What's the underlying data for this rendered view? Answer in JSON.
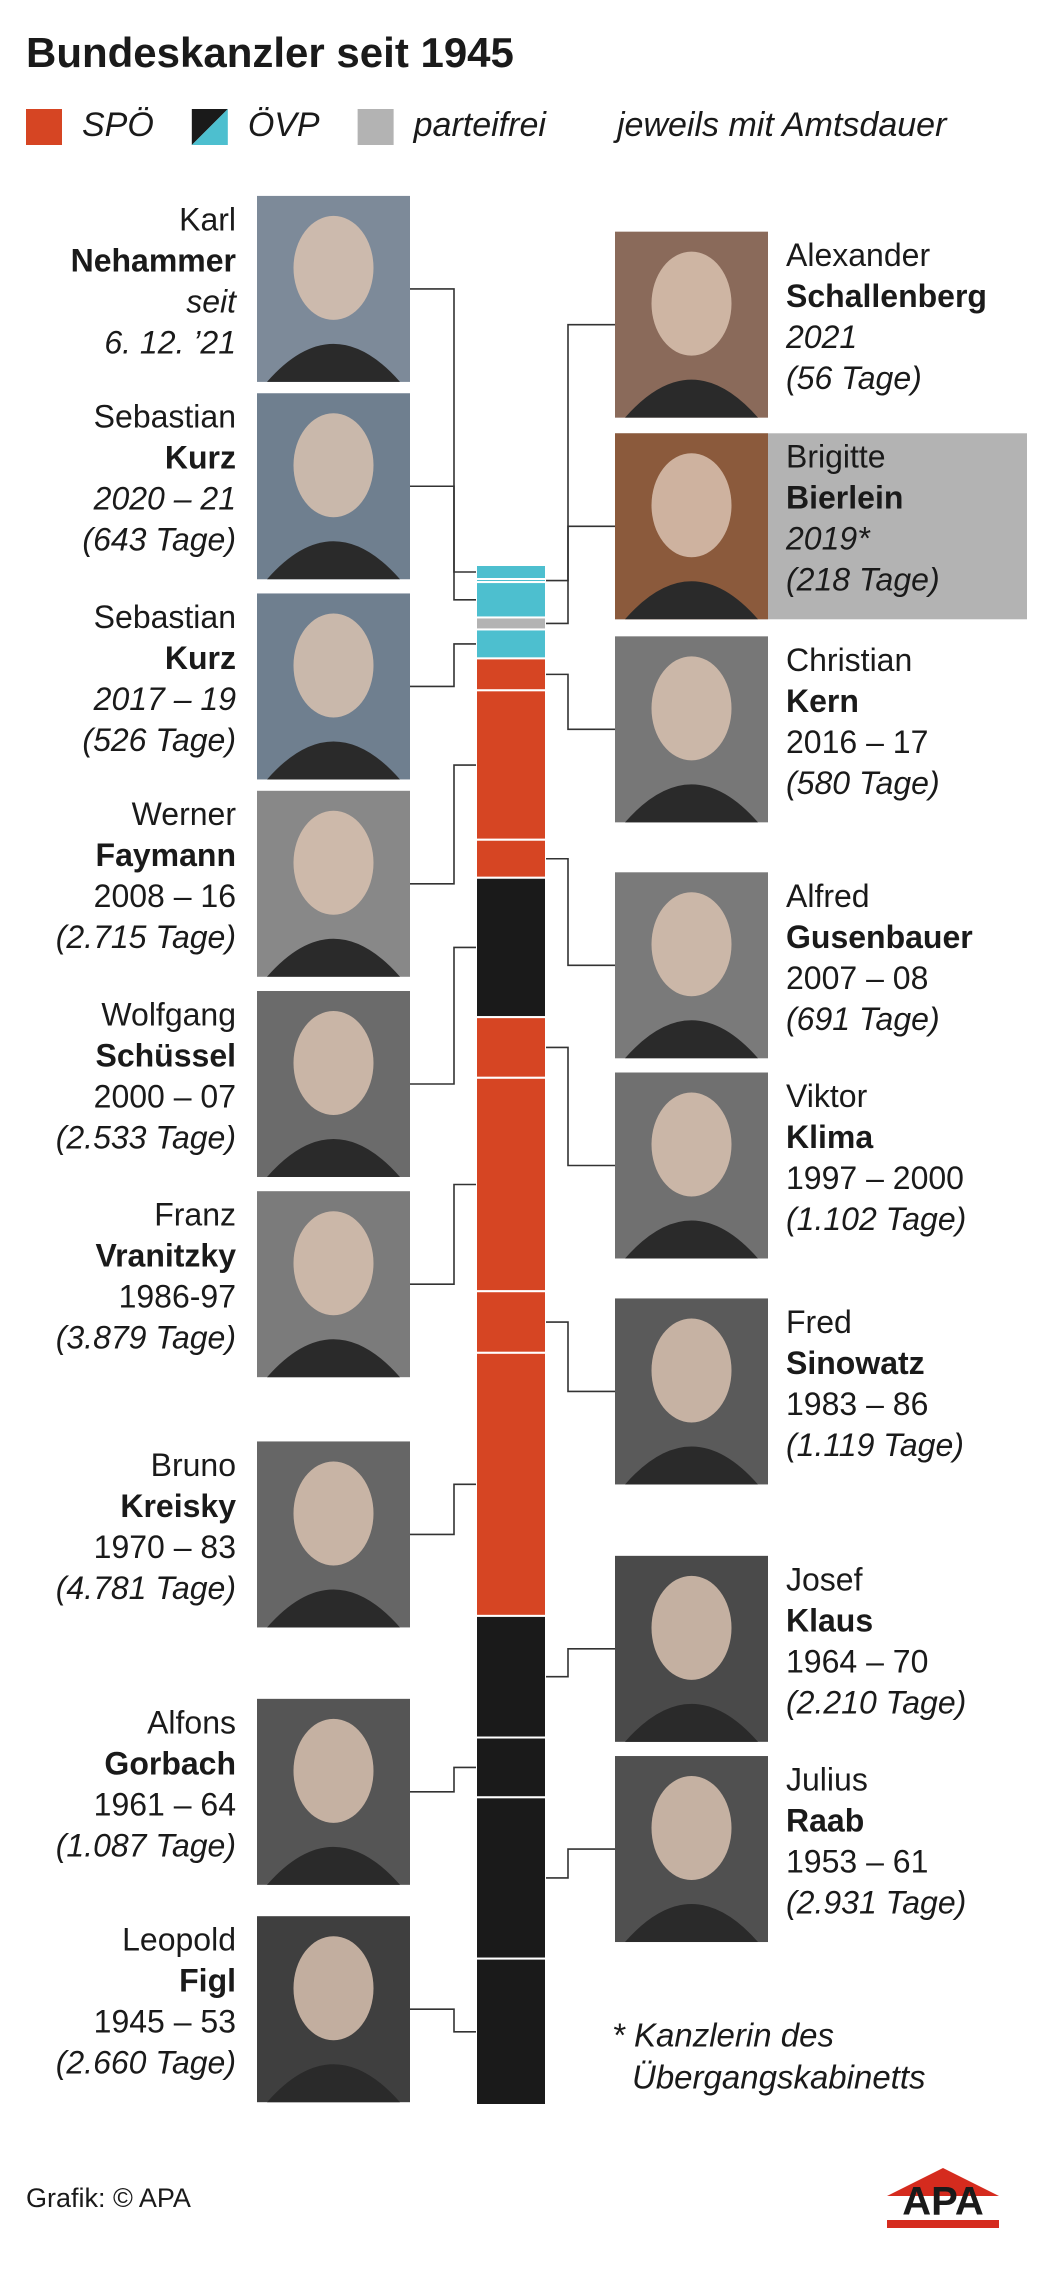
{
  "title": "Bundeskanzler seit 1945",
  "legend": [
    {
      "label": "SPÖ",
      "colors": [
        "#d64523"
      ]
    },
    {
      "label": "ÖVP",
      "colors": [
        "#1a1a1a",
        "#4dbfcf"
      ]
    },
    {
      "label": "parteifrei",
      "colors": [
        "#b3b3b3"
      ]
    }
  ],
  "legend_note": "jeweils mit Amtsdauer",
  "chancellors": [
    {
      "first": "Karl",
      "last": "Nehammer",
      "term": "seit",
      "days_label": "6. 12. ’21",
      "color": "#4dbfcf",
      "term_italic": true
    },
    {
      "first": "Alexander",
      "last": "Schallenberg",
      "term": "2021",
      "days_label": "(56 Tage)",
      "days": 56,
      "color": "#4dbfcf",
      "term_italic": true
    },
    {
      "first": "Sebastian",
      "last": "Kurz",
      "term": "2020 – 21",
      "days_label": "(643 Tage)",
      "days": 643,
      "color": "#4dbfcf",
      "term_italic": true
    },
    {
      "first": "Brigitte",
      "last": "Bierlein",
      "term": "2019*",
      "days_label": "(218 Tage)",
      "days": 218,
      "color": "#b3b3b3",
      "term_italic": true,
      "highlight": true
    },
    {
      "first": "Sebastian",
      "last": "Kurz",
      "term": "2017 – 19",
      "days_label": "(526 Tage)",
      "days": 526,
      "color": "#4dbfcf",
      "term_italic": true
    },
    {
      "first": "Christian",
      "last": "Kern",
      "term": "2016 – 17",
      "days_label": "(580 Tage)",
      "days": 580,
      "color": "#d64523"
    },
    {
      "first": "Werner",
      "last": "Faymann",
      "term": "2008 – 16",
      "days_label": "(2.715 Tage)",
      "days": 2715,
      "color": "#d64523"
    },
    {
      "first": "Alfred",
      "last": "Gusenbauer",
      "term": "2007 – 08",
      "days_label": "(691 Tage)",
      "days": 691,
      "color": "#d64523"
    },
    {
      "first": "Wolfgang",
      "last": "Schüssel",
      "term": "2000 – 07",
      "days_label": "(2.533 Tage)",
      "days": 2533,
      "color": "#1a1a1a"
    },
    {
      "first": "Viktor",
      "last": "Klima",
      "term": "1997 – 2000",
      "days_label": "(1.102 Tage)",
      "days": 1102,
      "color": "#d64523"
    },
    {
      "first": "Franz",
      "last": "Vranitzky",
      "term": "1986-97",
      "days_label": "(3.879 Tage)",
      "days": 3879,
      "color": "#d64523"
    },
    {
      "first": "Fred",
      "last": "Sinowatz",
      "term": "1983 – 86",
      "days_label": "(1.119 Tage)",
      "days": 1119,
      "color": "#d64523"
    },
    {
      "first": "Bruno",
      "last": "Kreisky",
      "term": "1970 – 83",
      "days_label": "(4.781 Tage)",
      "days": 4781,
      "color": "#d64523"
    },
    {
      "first": "Josef",
      "last": "Klaus",
      "term": "1964 – 70",
      "days_label": "(2.210 Tage)",
      "days": 2210,
      "color": "#1a1a1a"
    },
    {
      "first": "Alfons",
      "last": "Gorbach",
      "term": "1961 – 64",
      "days_label": "(1.087 Tage)",
      "days": 1087,
      "color": "#1a1a1a"
    },
    {
      "first": "Julius",
      "last": "Raab",
      "term": "1953 – 61",
      "days_label": "(2.931 Tage)",
      "days": 2931,
      "color": "#1a1a1a"
    },
    {
      "first": "Leopold",
      "last": "Figl",
      "term": "1945 – 53",
      "days_label": "(2.660 Tage)",
      "days": 2660,
      "color": "#1a1a1a"
    }
  ],
  "footnote": [
    "* Kanzlerin des",
    "Übergangskabinetts"
  ],
  "credit": "Grafik: © APA",
  "logo": "APA"
}
